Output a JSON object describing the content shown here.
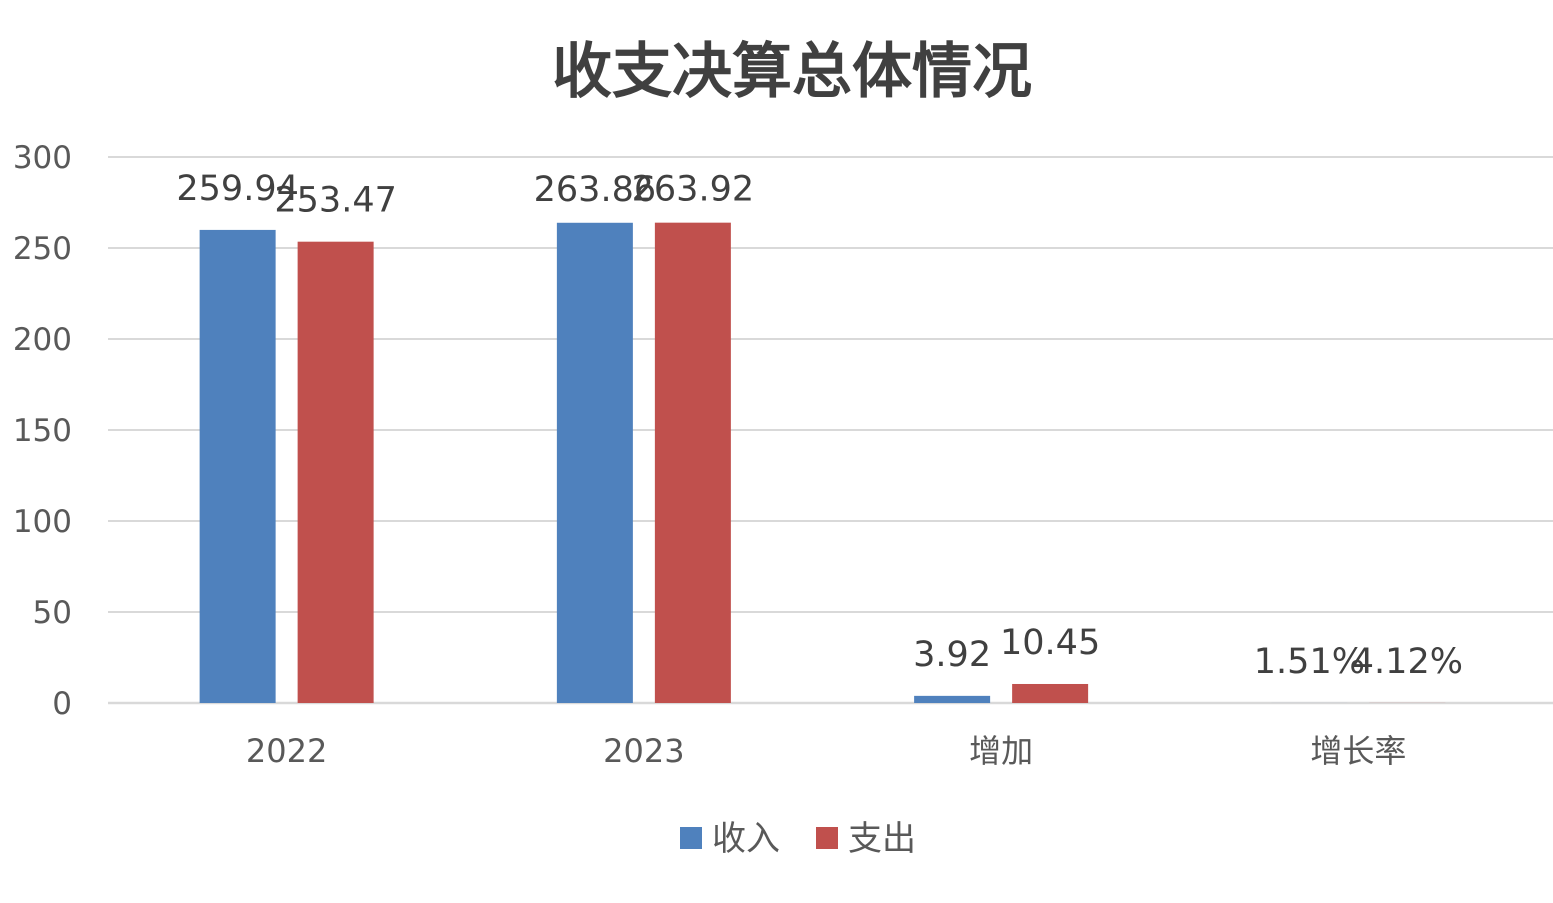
{
  "chart_data": {
    "type": "bar",
    "title": "收支决算总体情况",
    "xlabel": "",
    "ylabel": "",
    "ylim": [
      0,
      300
    ],
    "y_ticks": [
      0,
      50,
      100,
      150,
      200,
      250,
      300
    ],
    "grid": true,
    "legend_position": "bottom",
    "categories": [
      "2022",
      "2023",
      "增加",
      "增长率"
    ],
    "series": [
      {
        "name": "收入",
        "color": "#4f81bd",
        "values": [
          259.94,
          263.86,
          3.92,
          0.0151
        ],
        "labels": [
          "259.94",
          "263.86",
          "3.92",
          "1.51%"
        ]
      },
      {
        "name": "支出",
        "color": "#c0504d",
        "values": [
          253.47,
          263.92,
          10.45,
          0.0412
        ],
        "labels": [
          "253.47",
          "263.92",
          "10.45",
          "4.12%"
        ]
      }
    ]
  }
}
